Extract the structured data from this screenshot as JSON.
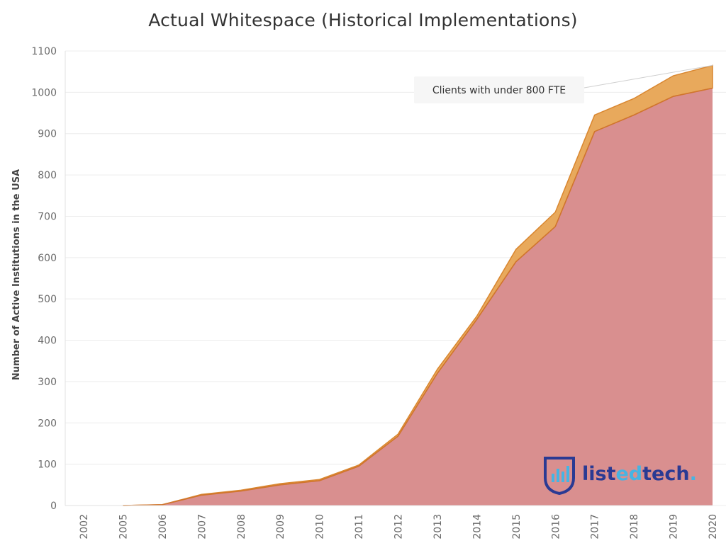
{
  "title": "Actual Whitespace (Historical Implementations)",
  "chart_data": {
    "type": "area",
    "stacked": true,
    "title": "Actual Whitespace (Historical Implementations)",
    "xlabel": "",
    "ylabel": "Number of Active Institutions in the USA",
    "x": [
      "2002",
      "2005",
      "2006",
      "2007",
      "2008",
      "2009",
      "2010",
      "2011",
      "2012",
      "2013",
      "2014",
      "2015",
      "2016",
      "2017",
      "2018",
      "2019",
      "2020"
    ],
    "ylim": [
      0,
      1100
    ],
    "yticks": [
      0,
      100,
      200,
      300,
      400,
      500,
      600,
      700,
      800,
      900,
      1000,
      1100
    ],
    "grid": true,
    "series": [
      {
        "name": "",
        "color": "#d98f8f",
        "values": [
          0,
          0,
          2,
          25,
          35,
          50,
          60,
          95,
          168,
          320,
          450,
          590,
          675,
          905,
          945,
          990,
          1010
        ]
      },
      {
        "name": "Clients with under 800 FTE",
        "color": "#e8a95c",
        "values": [
          0,
          0,
          0,
          2,
          2,
          3,
          3,
          3,
          5,
          10,
          8,
          30,
          35,
          40,
          40,
          50,
          55
        ]
      }
    ],
    "annotations": [
      {
        "text": "Clients with under 800 FTE",
        "target_x": "2020",
        "target_y": 1065
      }
    ]
  },
  "logo": {
    "name": "listedtech",
    "text_a": "list",
    "text_b": "ed",
    "text_c": "tech",
    "dot": "."
  },
  "colors": {
    "primary_area": "#d98f8f",
    "primary_line": "#d0752d",
    "secondary_area": "#e8a95c",
    "grid": "#ececec",
    "logo_dark": "#2a3a93",
    "logo_light": "#46b4e3"
  }
}
